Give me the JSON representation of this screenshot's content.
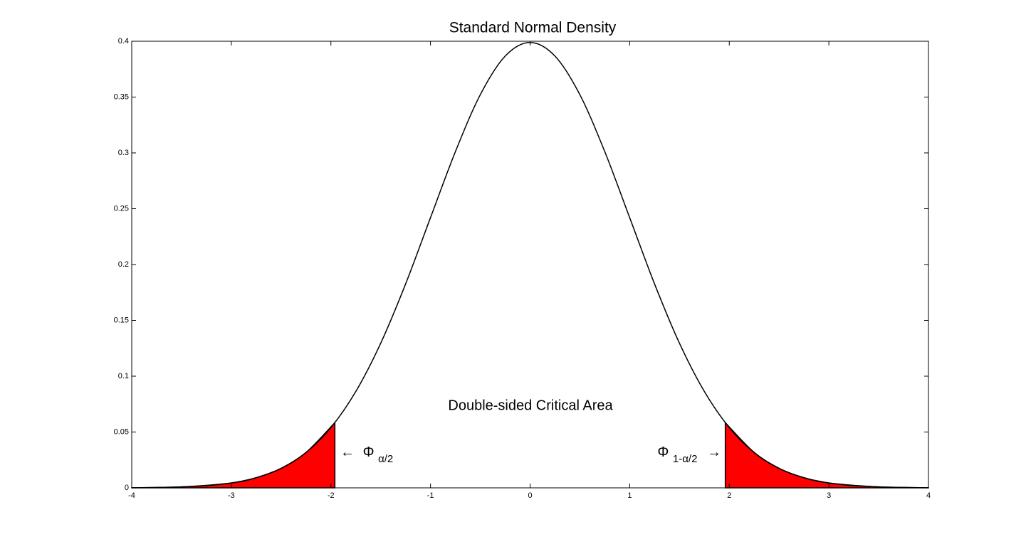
{
  "chart_data": {
    "type": "line",
    "title": "Standard Normal Density",
    "xlim": [
      -4,
      4
    ],
    "xticks": [
      -4,
      -3,
      -2,
      -1,
      0,
      1,
      2,
      3,
      4
    ],
    "ylim": [
      0,
      0.4
    ],
    "yticks": [
      0,
      0.05,
      0.1,
      0.15,
      0.2,
      0.25,
      0.3,
      0.35,
      0.4
    ],
    "grid": false,
    "series": [
      {
        "kind": "area",
        "color": "#ff0000",
        "x": [
          -4,
          -3.5,
          -3,
          -2.75,
          -2.5,
          -2.25,
          -1.96
        ],
        "values": [
          0.0001,
          0.0009,
          0.0044,
          0.0091,
          0.0175,
          0.0317,
          0.0584
        ]
      },
      {
        "kind": "area",
        "color": "#ff0000",
        "x": [
          1.96,
          2.25,
          2.5,
          2.75,
          3,
          3.5,
          4
        ],
        "values": [
          0.0584,
          0.0317,
          0.0175,
          0.0091,
          0.0044,
          0.0009,
          0.0001
        ]
      },
      {
        "kind": "line",
        "color": "#000000",
        "x": [
          -4,
          -3.75,
          -3.5,
          -3.25,
          -3,
          -2.75,
          -2.5,
          -2.25,
          -2,
          -1.75,
          -1.5,
          -1.25,
          -1,
          -0.75,
          -0.5,
          -0.25,
          0,
          0.25,
          0.5,
          0.75,
          1,
          1.25,
          1.5,
          1.75,
          2,
          2.25,
          2.5,
          2.75,
          3,
          3.25,
          3.5,
          3.75,
          4
        ],
        "values": [
          0.0001,
          0.0004,
          0.0009,
          0.002,
          0.0044,
          0.0091,
          0.0175,
          0.0317,
          0.054,
          0.0863,
          0.1295,
          0.1826,
          0.242,
          0.3011,
          0.3521,
          0.3867,
          0.3989,
          0.3867,
          0.3521,
          0.3011,
          0.242,
          0.1826,
          0.1295,
          0.0863,
          0.054,
          0.0317,
          0.0175,
          0.0091,
          0.0044,
          0.002,
          0.0009,
          0.0004,
          0.0001
        ]
      }
    ],
    "annotations": [
      {
        "text": "Double-sided Critical Area"
      },
      {
        "before": "←",
        "symbol": "Φ",
        "sub": "α/2"
      },
      {
        "symbol": "Φ",
        "sub": "1-α/2",
        "after": "→"
      }
    ]
  }
}
